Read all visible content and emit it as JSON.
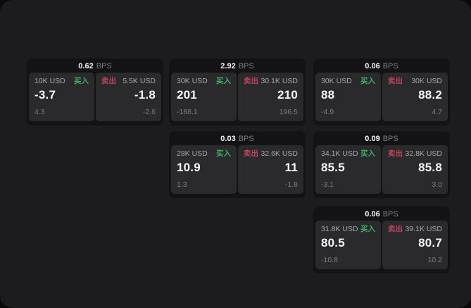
{
  "labels": {
    "buy": "买入",
    "sell": "卖出",
    "bps_unit": "BPS"
  },
  "theme": {
    "background": "#0a0a0b",
    "surface": "#1c1c1e",
    "card": "#131315",
    "panel": "#2a2a2d",
    "text_primary": "#f5f5f6",
    "text_secondary": "#a6a6ab",
    "text_muted": "#7c7c82",
    "buy_green": "#3fae68",
    "sell_red": "#bd4459"
  },
  "cards": [
    {
      "bps": "0.62",
      "buy": {
        "size": "10K USD",
        "price": "-3.7",
        "change": "4.3"
      },
      "sell": {
        "size": "5.5K USD",
        "price": "-1.8",
        "change": "-2.6"
      }
    },
    {
      "bps": "2.92",
      "buy": {
        "size": "30K USD",
        "price": "201",
        "change": "-188.1"
      },
      "sell": {
        "size": "30.1K USD",
        "price": "210",
        "change": "196.5"
      }
    },
    {
      "bps": "0.06",
      "buy": {
        "size": "30K USD",
        "price": "88",
        "change": "-4.9"
      },
      "sell": {
        "size": "30K USD",
        "price": "88.2",
        "change": "4.7"
      }
    },
    {
      "bps": "0.03",
      "buy": {
        "size": "28K USD",
        "price": "10.9",
        "change": "1.3"
      },
      "sell": {
        "size": "32.6K USD",
        "price": "11",
        "change": "-1.8"
      }
    },
    {
      "bps": "0.09",
      "buy": {
        "size": "34.1K USD",
        "price": "85.5",
        "change": "-3.1"
      },
      "sell": {
        "size": "32.8K USD",
        "price": "85.8",
        "change": "3.0"
      }
    },
    {
      "bps": "0.06",
      "buy": {
        "size": "31.8K USD",
        "price": "80.5",
        "change": "-10.8"
      },
      "sell": {
        "size": "39.1K USD",
        "price": "80.7",
        "change": "10.2"
      }
    }
  ]
}
